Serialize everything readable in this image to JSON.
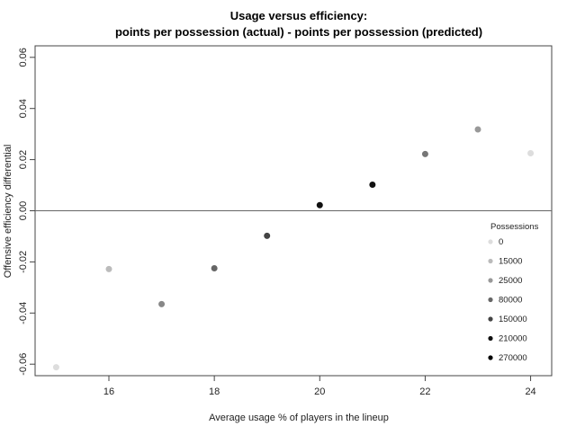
{
  "chart_data": {
    "type": "scatter",
    "title": "Usage versus efficiency:",
    "subtitle": "points per possession (actual) - points per possession (predicted)",
    "xlabel": "Average usage % of players in the lineup",
    "ylabel": "Offensive efficiency differential",
    "xlim": [
      14.6,
      24.4
    ],
    "ylim": [
      -0.0645,
      0.0645
    ],
    "x_ticks": [
      "16",
      "18",
      "20",
      "22",
      "24"
    ],
    "y_ticks": [
      "-0.06",
      "-0.04",
      "-0.02",
      "0.00",
      "0.02",
      "0.04",
      "0.06"
    ],
    "grid": false,
    "reference_line_y": 0,
    "points": [
      {
        "x": 15,
        "y": -0.0612,
        "color": "#dddddd"
      },
      {
        "x": 16,
        "y": -0.0228,
        "color": "#bbbbbb"
      },
      {
        "x": 17,
        "y": -0.0365,
        "color": "#888888"
      },
      {
        "x": 18,
        "y": -0.0225,
        "color": "#666666"
      },
      {
        "x": 19,
        "y": -0.0098,
        "color": "#444444"
      },
      {
        "x": 20,
        "y": 0.0022,
        "color": "#111111"
      },
      {
        "x": 21,
        "y": 0.0102,
        "color": "#111111"
      },
      {
        "x": 22,
        "y": 0.0222,
        "color": "#777777"
      },
      {
        "x": 23,
        "y": 0.0318,
        "color": "#999999"
      },
      {
        "x": 24,
        "y": 0.0225,
        "color": "#dddddd"
      }
    ],
    "legend": {
      "title": "Possessions",
      "placement": "bottom-right",
      "entries": [
        {
          "label": "0",
          "color": "#dddddd"
        },
        {
          "label": "15000",
          "color": "#bbbbbb"
        },
        {
          "label": "25000",
          "color": "#999999"
        },
        {
          "label": "80000",
          "color": "#666666"
        },
        {
          "label": "150000",
          "color": "#444444"
        },
        {
          "label": "210000",
          "color": "#111111"
        },
        {
          "label": "270000",
          "color": "#000000"
        }
      ]
    }
  }
}
